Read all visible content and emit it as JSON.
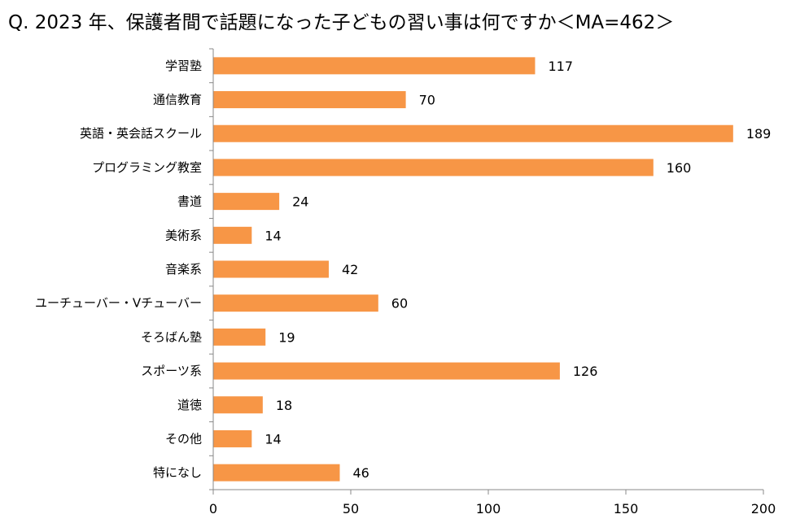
{
  "chart_data": {
    "type": "bar",
    "orientation": "horizontal",
    "title": "Q. 2023 年、保護者間で話題になった子どもの習い事は何ですか＜MA=462＞",
    "xlabel": "",
    "ylabel": "",
    "categories": [
      "学習塾",
      "通信教育",
      "英語・英会話スクール",
      "プログラミング教室",
      "書道",
      "美術系",
      "音楽系",
      "ユーチューバー・Vチューバー",
      "そろばん塾",
      "スポーツ系",
      "道徳",
      "その他",
      "特になし"
    ],
    "values": [
      117,
      70,
      189,
      160,
      24,
      14,
      42,
      60,
      19,
      126,
      18,
      14,
      46
    ],
    "xlim": [
      0,
      200
    ],
    "xticks": [
      0,
      50,
      100,
      150,
      200
    ],
    "grid": false,
    "legend": "none",
    "colors": {
      "bar": "#F79646",
      "axis": "#888888"
    }
  }
}
